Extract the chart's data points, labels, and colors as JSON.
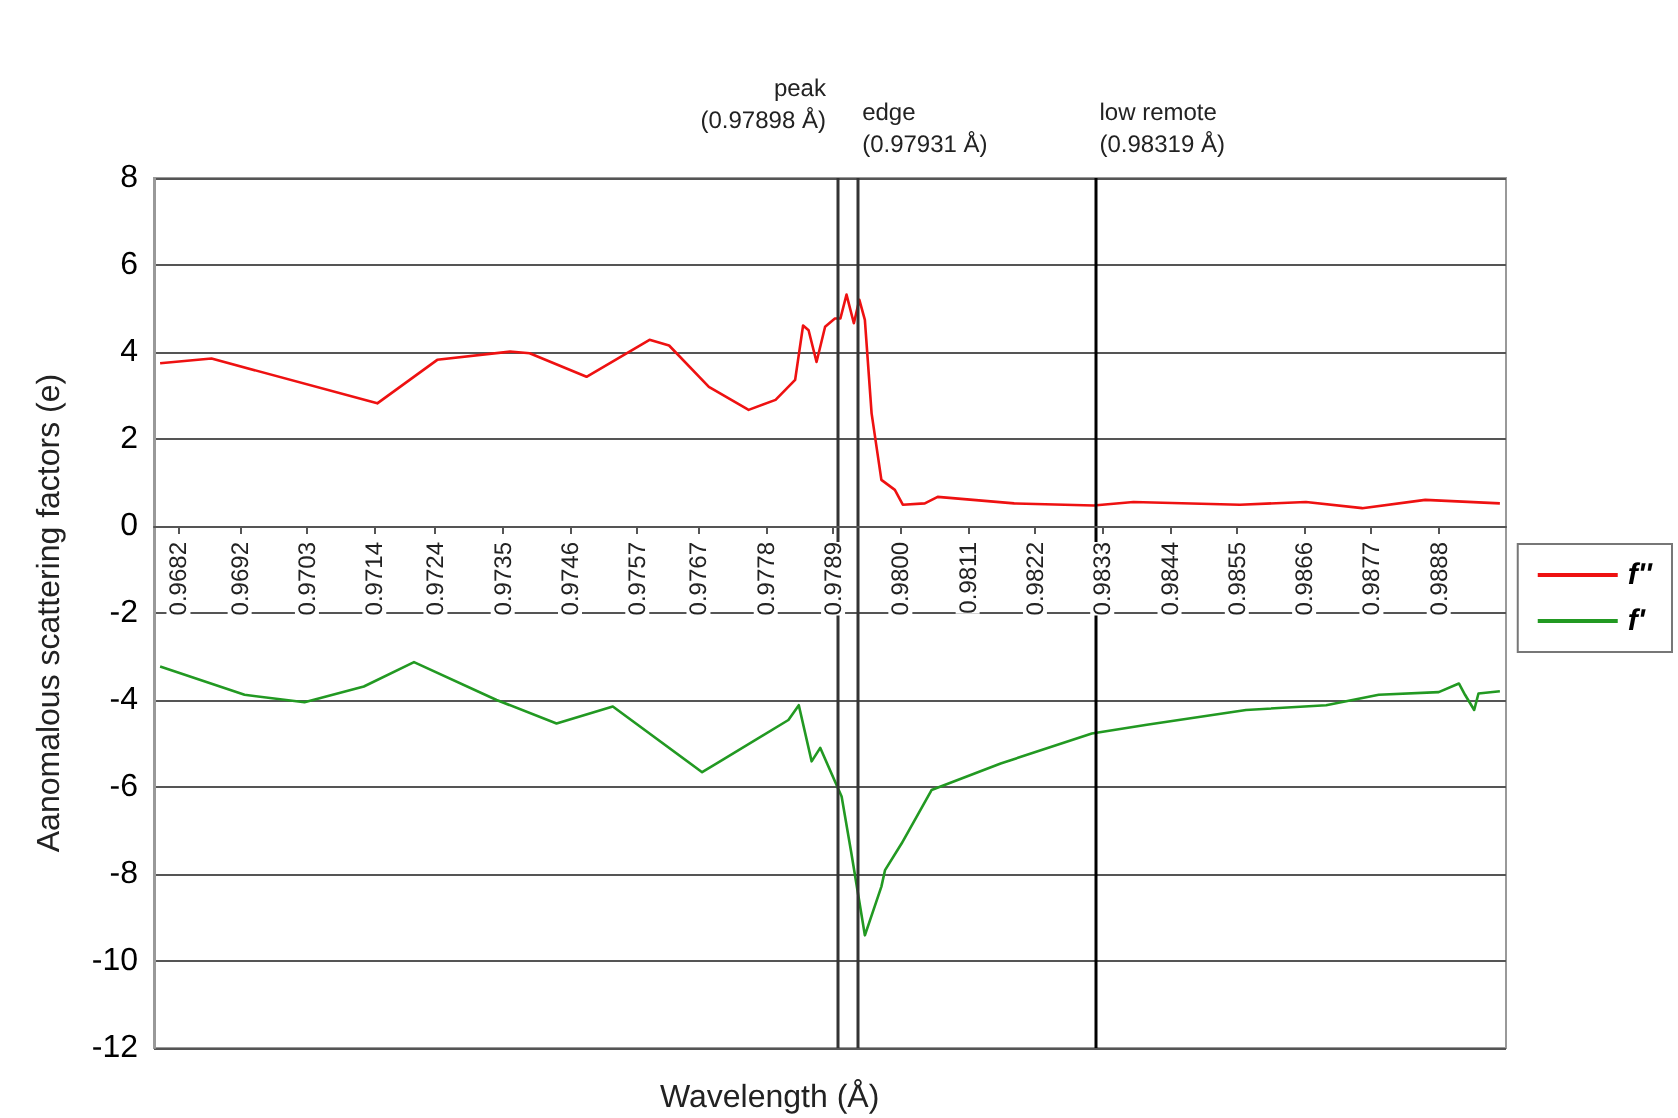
{
  "chart_data": {
    "type": "line",
    "xlabel": "Wavelength (Å)",
    "ylabel": "Aanomalous scattering factors (e)",
    "xlim": [
      0.9678,
      0.9899
    ],
    "xticks": [
      0.9682,
      0.9692,
      0.9703,
      0.9714,
      0.9724,
      0.9735,
      0.9746,
      0.9757,
      0.9767,
      0.9778,
      0.9789,
      {
        "value": 0.98,
        "label": "0.9800"
      },
      0.9811,
      0.9822,
      0.9833,
      0.9844,
      0.9855,
      0.9866,
      0.9877,
      0.9888
    ],
    "ylim": [
      -12,
      8
    ],
    "yticks": [
      -12,
      -10,
      -8,
      -6,
      -4,
      -2,
      0,
      2,
      4,
      6,
      8
    ],
    "grid": "y",
    "legend": "right",
    "marker": "none",
    "line_style": "solid",
    "series": [
      {
        "name": "f''",
        "color": "#ee1111",
        "x": [
          0.9679,
          0.96874,
          0.97145,
          0.97243,
          0.97362,
          0.97394,
          0.97487,
          0.9759,
          0.97622,
          0.97687,
          0.97752,
          0.97796,
          0.97828,
          0.97841,
          0.9785,
          0.97863,
          0.97877,
          0.97893,
          0.97902,
          0.97912,
          0.97924,
          0.97933,
          0.97942,
          0.97953,
          0.97969,
          0.97991,
          0.98004,
          0.9804,
          0.98061,
          0.98186,
          0.98316,
          0.98381,
          0.98555,
          0.98663,
          0.98755,
          0.98858,
          0.9898
        ],
        "values": [
          3.74,
          3.85,
          2.82,
          3.82,
          4.01,
          3.97,
          3.43,
          4.28,
          4.15,
          3.2,
          2.67,
          2.9,
          3.36,
          4.61,
          4.5,
          3.77,
          4.58,
          4.77,
          4.77,
          5.32,
          4.66,
          5.2,
          4.74,
          2.59,
          1.06,
          0.83,
          0.49,
          0.52,
          0.67,
          0.52,
          0.47,
          0.55,
          0.49,
          0.55,
          0.41,
          0.6,
          0.52
        ]
      },
      {
        "name": "f'",
        "color": "#229922",
        "x": [
          0.9679,
          0.96928,
          0.97026,
          0.97123,
          0.97205,
          0.9734,
          0.97438,
          0.9753,
          0.97676,
          0.97817,
          0.97834,
          0.97855,
          0.97869,
          0.97904,
          0.9792,
          0.97942,
          0.97969,
          0.97975,
          0.98002,
          0.98051,
          0.98164,
          0.98313,
          0.98403,
          0.98565,
          0.98696,
          0.98782,
          0.9888,
          0.98913,
          0.98923,
          0.98938,
          0.98945,
          0.9898
        ],
        "values": [
          -3.23,
          -3.88,
          -4.05,
          -3.69,
          -3.13,
          -4.0,
          -4.54,
          -4.15,
          -5.66,
          -4.46,
          -4.12,
          -5.41,
          -5.1,
          -6.22,
          -7.53,
          -9.41,
          -8.29,
          -7.91,
          -7.3,
          -6.07,
          -5.46,
          -4.77,
          -4.57,
          -4.23,
          -4.12,
          -3.88,
          -3.82,
          -3.62,
          -3.88,
          -4.23,
          -3.85,
          -3.8
        ]
      }
    ],
    "ref_lines": [
      {
        "axis": "x",
        "value": 0.97898,
        "label": "peak (0.97898 Å)",
        "color": "#333333"
      },
      {
        "axis": "x",
        "value": 0.97931,
        "label": "edge (0.97931 Å)",
        "color": "#333333"
      },
      {
        "axis": "x",
        "value": 0.98319,
        "label": "low remote (0.98319 Å)",
        "color": "#000000"
      }
    ]
  }
}
